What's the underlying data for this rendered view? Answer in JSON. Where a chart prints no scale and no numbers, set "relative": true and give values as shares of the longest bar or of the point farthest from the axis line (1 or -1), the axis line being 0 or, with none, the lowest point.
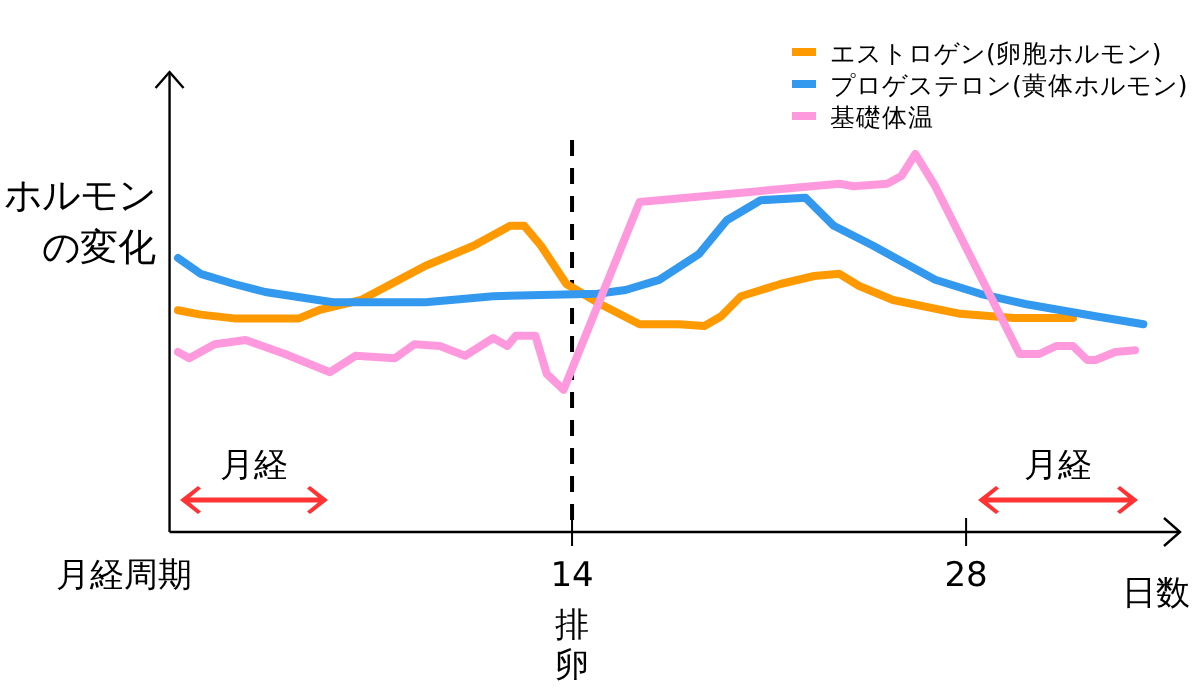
{
  "chart_data": {
    "type": "line",
    "relative": true,
    "xlabel": "日数",
    "ylabel": "ホルモンの変化",
    "legend": "top right",
    "xlim": [
      -0.3,
      35.6
    ],
    "xticks": [
      14,
      28
    ],
    "annotations": [
      "月経周期",
      "月経",
      "月経"
    ],
    "ref_lines": [
      {
        "axis": "x",
        "value": 14,
        "label": "排卵",
        "line_style": "dashed",
        "color": "#000000"
      }
    ],
    "series": [
      {
        "name": "エストロゲン(卵胞ホルモン)",
        "color": "#ff9900",
        "x": [
          0,
          0.8,
          2.0,
          4.3,
          5.0,
          6.5,
          8.8,
          10.5,
          11.8,
          12.3,
          12.9,
          13.8,
          15.0,
          16.4,
          17.8,
          18.7,
          19.3,
          20.0,
          21.4,
          22.6,
          23.5,
          24.2,
          25.4,
          27.8,
          29.7,
          31.8
        ],
        "values": [
          0.587,
          0.575,
          0.565,
          0.565,
          0.587,
          0.614,
          0.704,
          0.757,
          0.81,
          0.81,
          0.757,
          0.656,
          0.603,
          0.55,
          0.55,
          0.545,
          0.571,
          0.624,
          0.656,
          0.677,
          0.683,
          0.651,
          0.614,
          0.577,
          0.566,
          0.566
        ]
      },
      {
        "name": "プロゲステロン(黄体ホルモン)",
        "color": "#3399ee",
        "x": [
          0,
          0.8,
          2.0,
          3.1,
          5.5,
          8.8,
          11.2,
          14.9,
          15.9,
          17.1,
          18.5,
          19.5,
          20.7,
          22.3,
          23.3,
          24.7,
          26.9,
          28.5,
          30.1,
          32.6,
          34.3
        ],
        "values": [
          0.725,
          0.683,
          0.656,
          0.635,
          0.608,
          0.608,
          0.624,
          0.63,
          0.64,
          0.667,
          0.735,
          0.825,
          0.878,
          0.884,
          0.81,
          0.757,
          0.667,
          0.63,
          0.603,
          0.571,
          0.55
        ]
      },
      {
        "name": "基礎体温",
        "color": "#ff99dd",
        "x": [
          0,
          0.4,
          1.3,
          2.4,
          3.8,
          5.4,
          6.3,
          7.7,
          8.4,
          9.3,
          10.2,
          11.2,
          11.7,
          12.0,
          12.7,
          13.1,
          13.7,
          16.4,
          23.5,
          24.0,
          25.2,
          25.7,
          26.2,
          26.9,
          29.9,
          30.6,
          31.2,
          31.8,
          32.3,
          32.6,
          33.3,
          34.0
        ],
        "values": [
          0.476,
          0.46,
          0.497,
          0.508,
          0.471,
          0.423,
          0.466,
          0.46,
          0.497,
          0.492,
          0.466,
          0.513,
          0.492,
          0.519,
          0.519,
          0.418,
          0.376,
          0.873,
          0.921,
          0.915,
          0.921,
          0.942,
          1.0,
          0.915,
          0.471,
          0.471,
          0.492,
          0.492,
          0.455,
          0.455,
          0.476,
          0.481
        ]
      }
    ]
  }
}
